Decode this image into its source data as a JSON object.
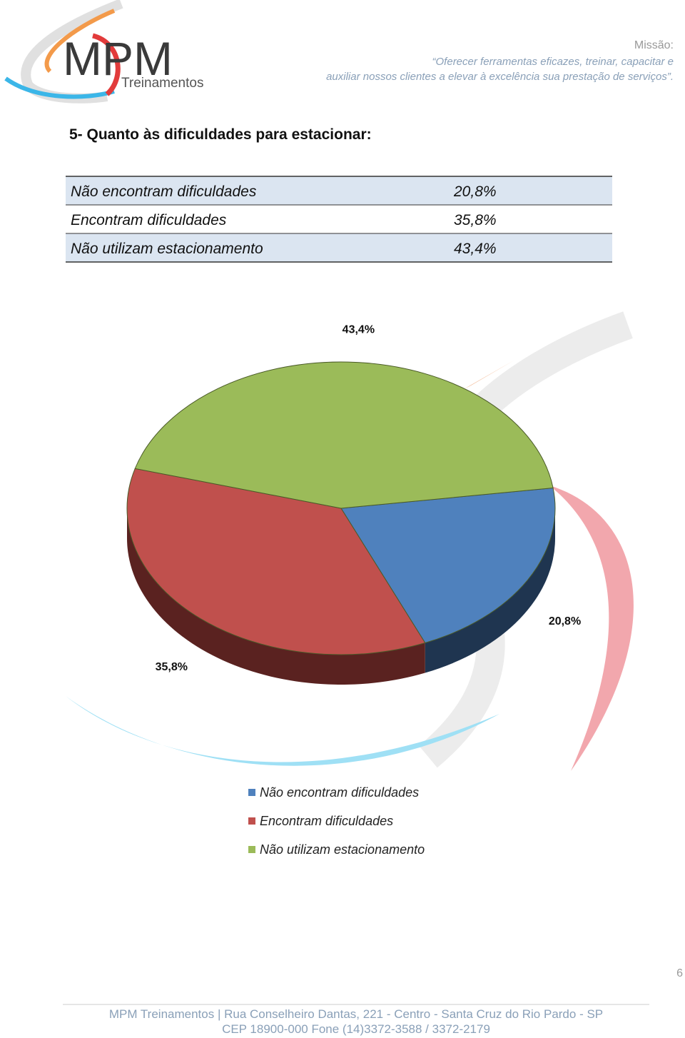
{
  "header": {
    "logo_title": "MPM",
    "logo_subtitle": "Treinamentos",
    "mission_label": "Missão:",
    "mission_lines": [
      "“Oferecer ferramentas eficazes, treinar, capacitar e",
      "auxiliar nossos clientes a elevar à excelência sua prestação de serviços”."
    ]
  },
  "section_title": "5- Quanto às dificuldades para estacionar:",
  "table": {
    "rows": [
      [
        "Não encontram dificuldades",
        "20,8%"
      ],
      [
        "Encontram dificuldades",
        "35,8%"
      ],
      [
        "Não utilizam estacionamento",
        "43,4%"
      ]
    ]
  },
  "chart_data": {
    "type": "pie",
    "categories": [
      "Não encontram dificuldades",
      "Encontram dificuldades",
      "Não utilizam estacionamento"
    ],
    "values": [
      20.8,
      35.8,
      43.4
    ],
    "value_labels": [
      "20,8%",
      "35,8%",
      "43,4%"
    ],
    "colors": [
      "#4f81bd",
      "#c0504d",
      "#9bbb59"
    ],
    "side_colors": [
      "#1f3550",
      "#5a2220",
      "#4a5a28"
    ]
  },
  "page_number": "6",
  "footer": {
    "lines": [
      "MPM Treinamentos | Rua Conselheiro Dantas, 221 - Centro - Santa Cruz do Rio Pardo - SP",
      "CEP 18900-000   Fone (14)3372-3588 / 3372-2179"
    ]
  }
}
